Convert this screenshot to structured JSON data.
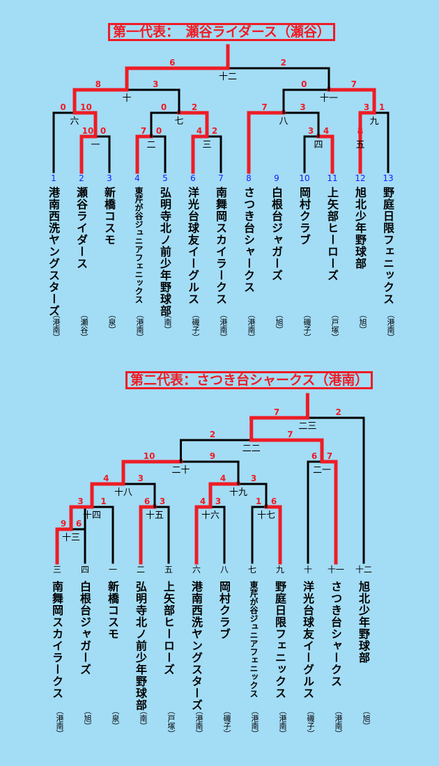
{
  "top": {
    "title": "第一代表：　瀬谷ライダース（瀬谷）",
    "teams": [
      {
        "seed": "1",
        "name": "港南西洗ヤングスターズ",
        "club": "（港南）"
      },
      {
        "seed": "2",
        "name": "瀬谷ライダース",
        "club": "（瀬谷）"
      },
      {
        "seed": "3",
        "name": "新橋コスモ",
        "club": "（泉）"
      },
      {
        "seed": "4",
        "name": "東芹が谷ジュニアフェニックス",
        "club": "（港南）"
      },
      {
        "seed": "5",
        "name": "弘明寺北ノ前少年野球部",
        "club": "（南）"
      },
      {
        "seed": "6",
        "name": "洋光台球友イーグルス",
        "club": "（磯子）"
      },
      {
        "seed": "7",
        "name": "南舞岡スカイラークス",
        "club": "（港南）"
      },
      {
        "seed": "8",
        "name": "さつき台シャークス",
        "club": "（港南）"
      },
      {
        "seed": "9",
        "name": "白根台ジャガーズ",
        "club": "（旭）"
      },
      {
        "seed": "10",
        "name": "岡村クラブ",
        "club": "（磯子）"
      },
      {
        "seed": "11",
        "name": "上矢部ヒーローズ",
        "club": "（戸塚）"
      },
      {
        "seed": "12",
        "name": "旭北少年野球部",
        "club": "（旭）"
      },
      {
        "seed": "13",
        "name": "野庭日限フェニックス",
        "club": "（港南）"
      }
    ],
    "games": [
      {
        "no": "一",
        "left": "10",
        "right": "0"
      },
      {
        "no": "二",
        "left": "7",
        "right": "0"
      },
      {
        "no": "三",
        "left": "4",
        "right": "2"
      },
      {
        "no": "四",
        "left": "3",
        "right": "4"
      },
      {
        "no": "五",
        "left": "2",
        "right": "4"
      },
      {
        "no": "六",
        "left": "0",
        "right": "10"
      },
      {
        "no": "七",
        "left": "0",
        "right": "2"
      },
      {
        "no": "八",
        "left": "7",
        "right": "3"
      },
      {
        "no": "九",
        "left": "3",
        "right": "1"
      },
      {
        "no": "十",
        "left": "8",
        "right": "3"
      },
      {
        "no": "十一",
        "left": "0",
        "right": "7"
      },
      {
        "no": "十二",
        "left": "6",
        "right": "2"
      }
    ]
  },
  "bottom": {
    "title": "第二代表：さつき台シャークス（港南）",
    "teams": [
      {
        "seed": "三",
        "name": "南舞岡スカイラークス",
        "club": "（港南）"
      },
      {
        "seed": "四",
        "name": "白根台ジャガーズ",
        "club": "（旭）"
      },
      {
        "seed": "一",
        "name": "新橋コスモ",
        "club": "（泉）"
      },
      {
        "seed": "二",
        "name": "弘明寺北ノ前少年野球部",
        "club": "（南）"
      },
      {
        "seed": "五",
        "name": "上矢部ヒーローズ",
        "club": "（戸塚）"
      },
      {
        "seed": "六",
        "name": "港南西洗ヤングスターズ",
        "club": "（港南）"
      },
      {
        "seed": "八",
        "name": "岡村クラブ",
        "club": "（磯子）"
      },
      {
        "seed": "七",
        "name": "東芹が谷ジュニアフェニックス",
        "club": "（港南）"
      },
      {
        "seed": "九",
        "name": "野庭日限フェニックス",
        "club": "（港南）"
      },
      {
        "seed": "十",
        "name": "洋光台球友イーグルス",
        "club": "（磯子）"
      },
      {
        "seed": "十一",
        "name": "さつき台シャークス",
        "club": "（港南）"
      },
      {
        "seed": "十二",
        "name": "旭北少年野球部",
        "club": "（旭）"
      }
    ],
    "games": [
      {
        "no": "十三",
        "left": "9",
        "right": "6"
      },
      {
        "no": "十四",
        "left": "3",
        "right": "1"
      },
      {
        "no": "十五",
        "left": "6",
        "right": "3"
      },
      {
        "no": "十六",
        "left": "4",
        "right": "3"
      },
      {
        "no": "十七",
        "left": "1",
        "right": "6"
      },
      {
        "no": "十八",
        "left": "4",
        "right": "3"
      },
      {
        "no": "十九",
        "left": "4",
        "right": "3"
      },
      {
        "no": "二十",
        "left": "10",
        "right": "9"
      },
      {
        "no": "二一",
        "left": "6",
        "right": "7"
      },
      {
        "no": "二二",
        "left": "2",
        "right": "7"
      },
      {
        "no": "二三",
        "left": "7",
        "right": "2"
      }
    ]
  },
  "colors": {
    "background": "#a3dcf5",
    "win": "#ee1c25",
    "line": "#000000",
    "seed": "#1a1aff"
  }
}
